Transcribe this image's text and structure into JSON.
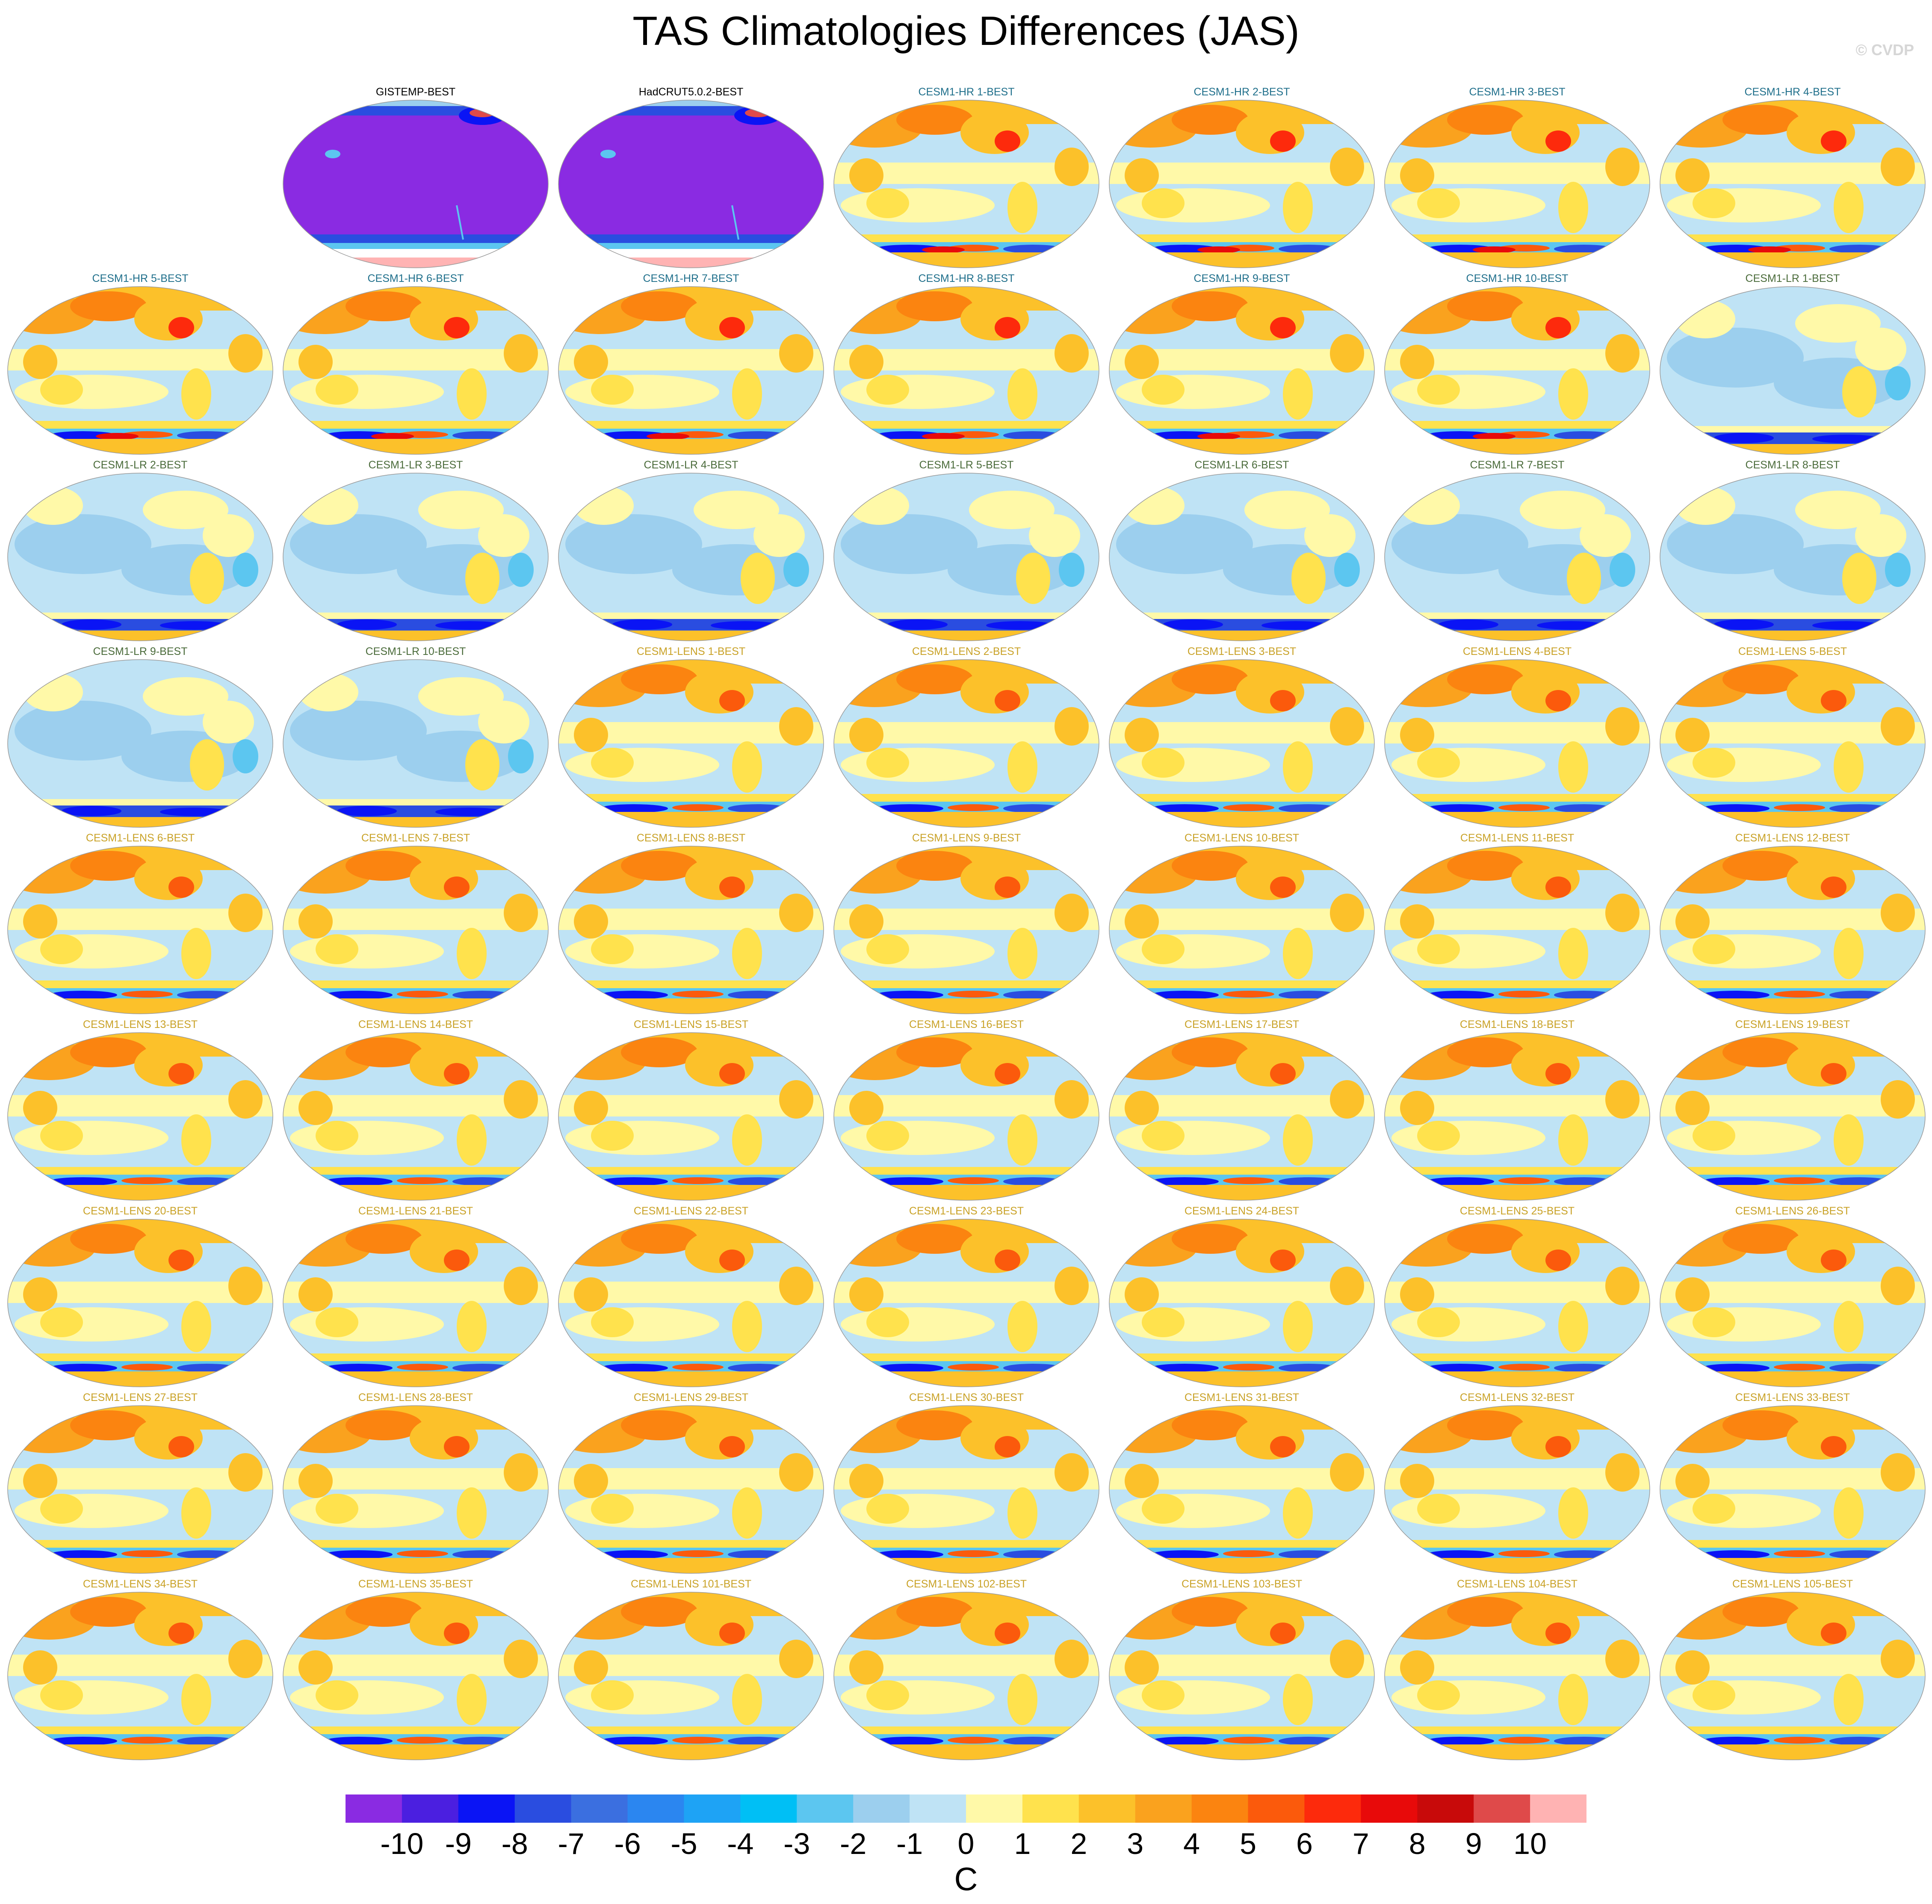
{
  "title": "TAS Climatologies Differences (JAS)",
  "credit": "© CVDP",
  "panels": [
    {
      "label": "GISTEMP-BEST",
      "group": "obs"
    },
    {
      "label": "HadCRUT5.0.2-BEST",
      "group": "obs"
    },
    {
      "label": "CESM1-HR 1-BEST",
      "group": "hr"
    },
    {
      "label": "CESM1-HR 2-BEST",
      "group": "hr"
    },
    {
      "label": "CESM1-HR 3-BEST",
      "group": "hr"
    },
    {
      "label": "CESM1-HR 4-BEST",
      "group": "hr"
    },
    {
      "label": "CESM1-HR 5-BEST",
      "group": "hr"
    },
    {
      "label": "CESM1-HR 6-BEST",
      "group": "hr"
    },
    {
      "label": "CESM1-HR 7-BEST",
      "group": "hr"
    },
    {
      "label": "CESM1-HR 8-BEST",
      "group": "hr"
    },
    {
      "label": "CESM1-HR 9-BEST",
      "group": "hr"
    },
    {
      "label": "CESM1-HR 10-BEST",
      "group": "hr"
    },
    {
      "label": "CESM1-LR 1-BEST",
      "group": "lr"
    },
    {
      "label": "CESM1-LR 2-BEST",
      "group": "lr"
    },
    {
      "label": "CESM1-LR 3-BEST",
      "group": "lr"
    },
    {
      "label": "CESM1-LR 4-BEST",
      "group": "lr"
    },
    {
      "label": "CESM1-LR 5-BEST",
      "group": "lr"
    },
    {
      "label": "CESM1-LR 6-BEST",
      "group": "lr"
    },
    {
      "label": "CESM1-LR 7-BEST",
      "group": "lr"
    },
    {
      "label": "CESM1-LR 8-BEST",
      "group": "lr"
    },
    {
      "label": "CESM1-LR 9-BEST",
      "group": "lr"
    },
    {
      "label": "CESM1-LR 10-BEST",
      "group": "lr"
    },
    {
      "label": "CESM1-LENS 1-BEST",
      "group": "lens"
    },
    {
      "label": "CESM1-LENS 2-BEST",
      "group": "lens"
    },
    {
      "label": "CESM1-LENS 3-BEST",
      "group": "lens"
    },
    {
      "label": "CESM1-LENS 4-BEST",
      "group": "lens"
    },
    {
      "label": "CESM1-LENS 5-BEST",
      "group": "lens"
    },
    {
      "label": "CESM1-LENS 6-BEST",
      "group": "lens"
    },
    {
      "label": "CESM1-LENS 7-BEST",
      "group": "lens"
    },
    {
      "label": "CESM1-LENS 8-BEST",
      "group": "lens"
    },
    {
      "label": "CESM1-LENS 9-BEST",
      "group": "lens"
    },
    {
      "label": "CESM1-LENS 10-BEST",
      "group": "lens"
    },
    {
      "label": "CESM1-LENS 11-BEST",
      "group": "lens"
    },
    {
      "label": "CESM1-LENS 12-BEST",
      "group": "lens"
    },
    {
      "label": "CESM1-LENS 13-BEST",
      "group": "lens"
    },
    {
      "label": "CESM1-LENS 14-BEST",
      "group": "lens"
    },
    {
      "label": "CESM1-LENS 15-BEST",
      "group": "lens"
    },
    {
      "label": "CESM1-LENS 16-BEST",
      "group": "lens"
    },
    {
      "label": "CESM1-LENS 17-BEST",
      "group": "lens"
    },
    {
      "label": "CESM1-LENS 18-BEST",
      "group": "lens"
    },
    {
      "label": "CESM1-LENS 19-BEST",
      "group": "lens"
    },
    {
      "label": "CESM1-LENS 20-BEST",
      "group": "lens"
    },
    {
      "label": "CESM1-LENS 21-BEST",
      "group": "lens"
    },
    {
      "label": "CESM1-LENS 22-BEST",
      "group": "lens"
    },
    {
      "label": "CESM1-LENS 23-BEST",
      "group": "lens"
    },
    {
      "label": "CESM1-LENS 24-BEST",
      "group": "lens"
    },
    {
      "label": "CESM1-LENS 25-BEST",
      "group": "lens"
    },
    {
      "label": "CESM1-LENS 26-BEST",
      "group": "lens"
    },
    {
      "label": "CESM1-LENS 27-BEST",
      "group": "lens"
    },
    {
      "label": "CESM1-LENS 28-BEST",
      "group": "lens"
    },
    {
      "label": "CESM1-LENS 29-BEST",
      "group": "lens"
    },
    {
      "label": "CESM1-LENS 30-BEST",
      "group": "lens"
    },
    {
      "label": "CESM1-LENS 31-BEST",
      "group": "lens"
    },
    {
      "label": "CESM1-LENS 32-BEST",
      "group": "lens"
    },
    {
      "label": "CESM1-LENS 33-BEST",
      "group": "lens"
    },
    {
      "label": "CESM1-LENS 34-BEST",
      "group": "lens"
    },
    {
      "label": "CESM1-LENS 35-BEST",
      "group": "lens"
    },
    {
      "label": "CESM1-LENS 101-BEST",
      "group": "lens"
    },
    {
      "label": "CESM1-LENS 102-BEST",
      "group": "lens"
    },
    {
      "label": "CESM1-LENS 103-BEST",
      "group": "lens"
    },
    {
      "label": "CESM1-LENS 104-BEST",
      "group": "lens"
    },
    {
      "label": "CESM1-LENS 105-BEST",
      "group": "lens"
    }
  ],
  "label_colors": {
    "obs": "#000000",
    "hr": "#1f6f8b",
    "lr": "#4a6b3a",
    "lens": "#c9a227"
  },
  "colorbar": {
    "ticks": [
      "-10",
      "-9",
      "-8",
      "-7",
      "-6",
      "-5",
      "-4",
      "-3",
      "-2",
      "-1",
      "0",
      "1",
      "2",
      "3",
      "4",
      "5",
      "6",
      "7",
      "8",
      "9",
      "10"
    ],
    "colors": [
      "#8a2be2",
      "#4b1fe0",
      "#0a14f5",
      "#2a4de0",
      "#3b6fe0",
      "#2b86f0",
      "#1ea3f5",
      "#00bff5",
      "#5cc6f0",
      "#9ccfee",
      "#bfe3f5",
      "#fff9a8",
      "#ffe24d",
      "#fcc12a",
      "#faa21e",
      "#fb8410",
      "#fb5a0c",
      "#fd2a0c",
      "#e80a0a",
      "#c80a0a",
      "#df4a4a",
      "#ffb3b3"
    ],
    "units": "C"
  }
}
